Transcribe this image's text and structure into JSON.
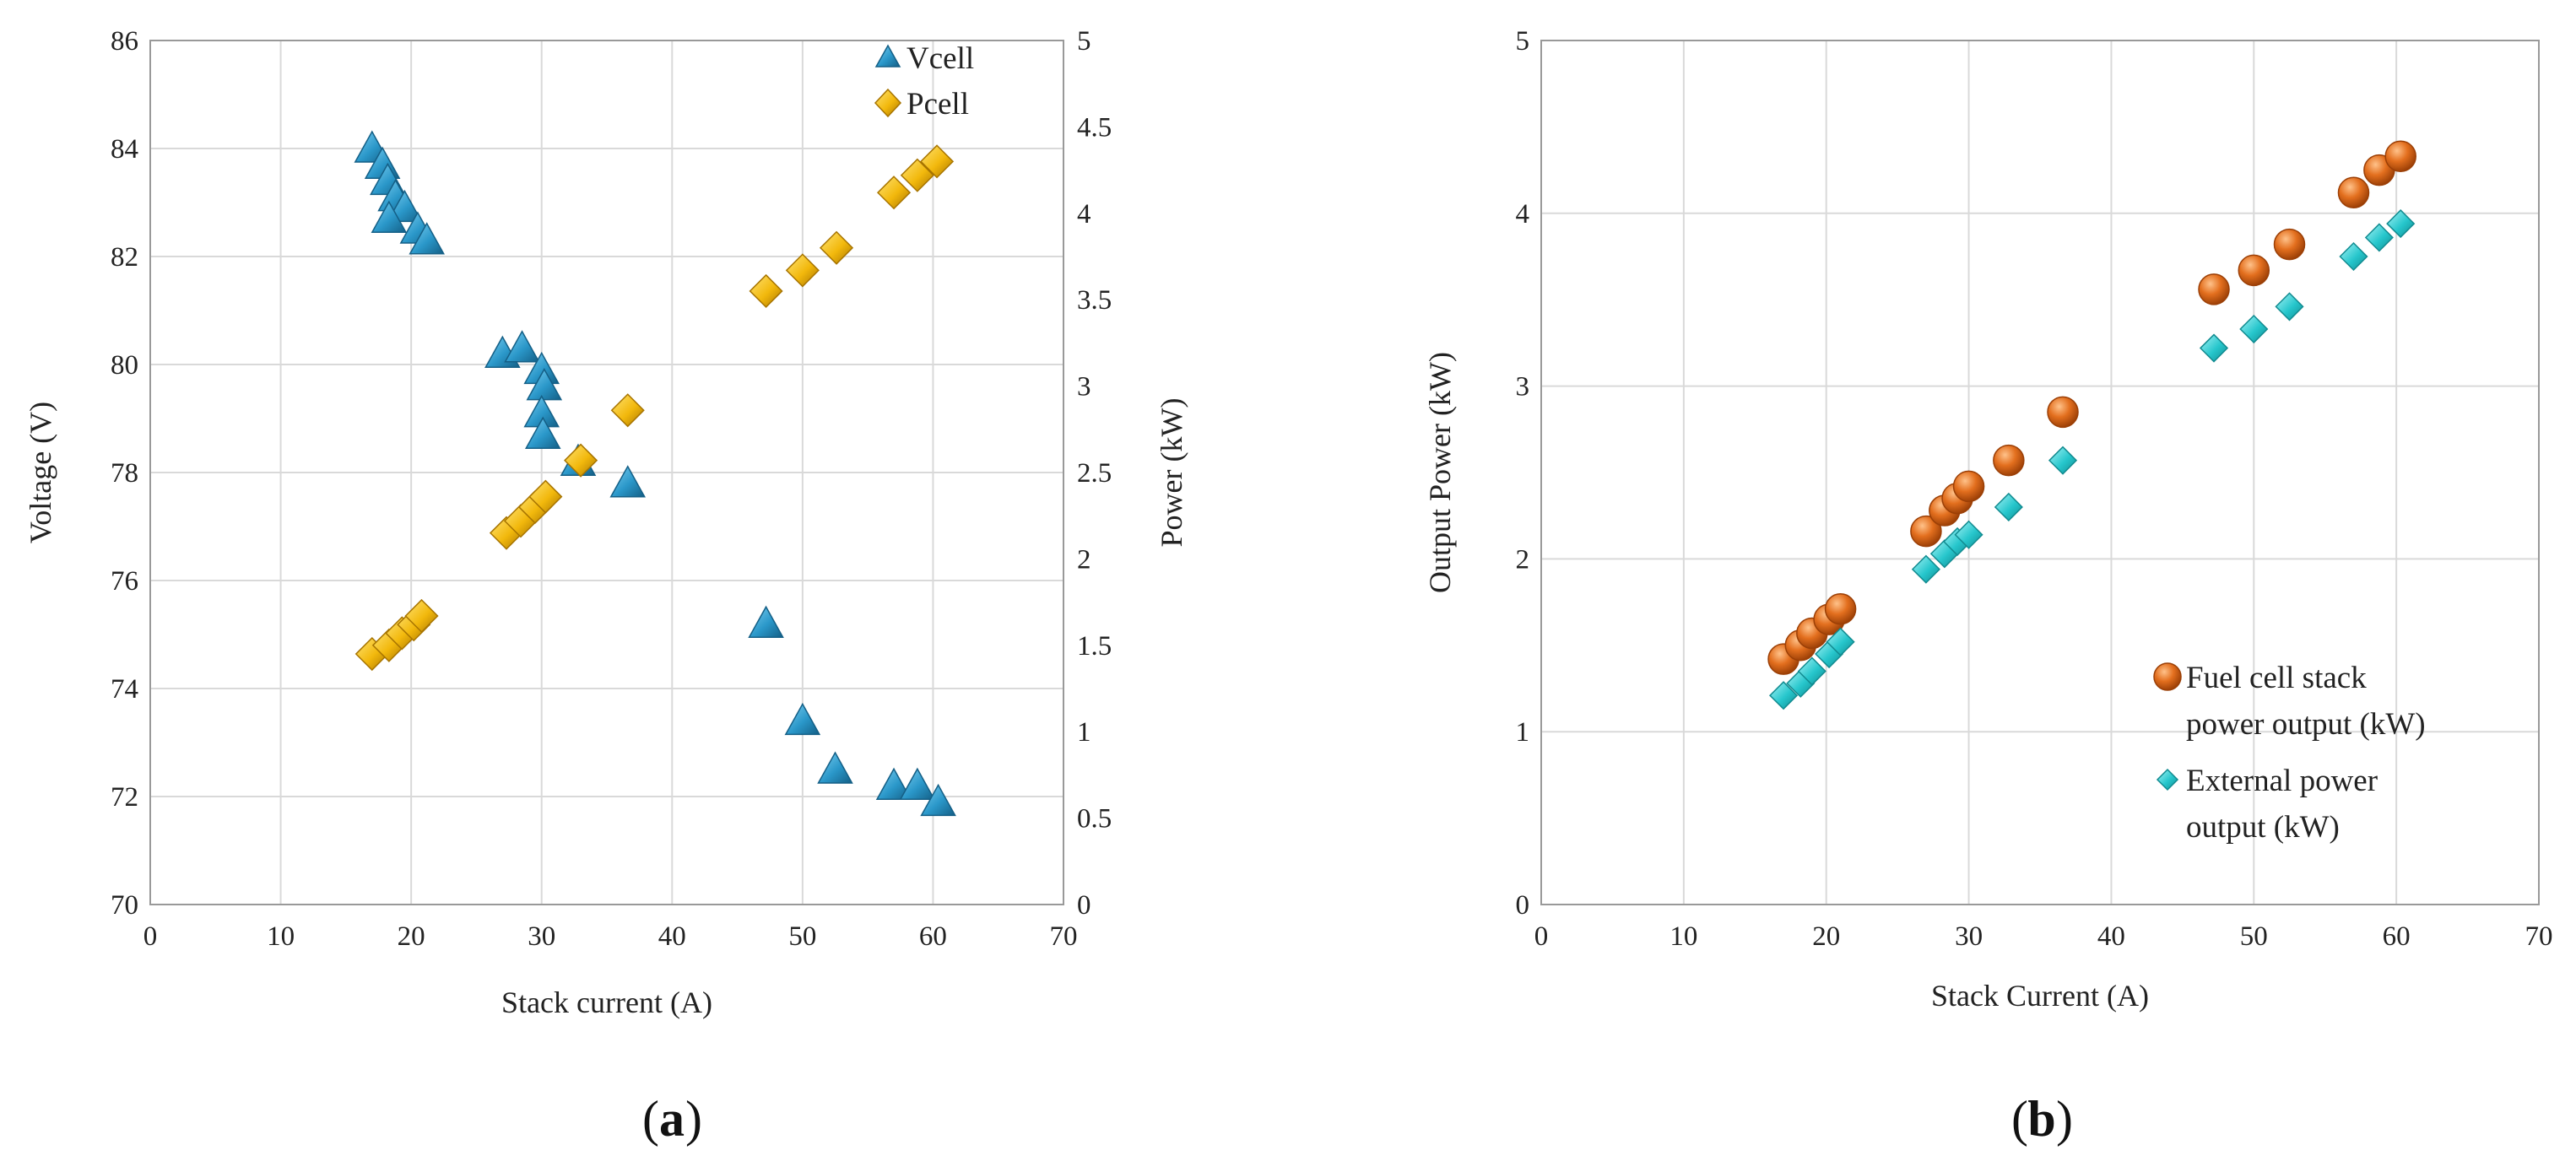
{
  "chart_data": [
    {
      "type": "scatter",
      "panel": "(a)",
      "panel_letter": "a",
      "xlabel": "Stack current (A)",
      "ylabel": "Voltage (V)",
      "ylabel_right": "Power (kW)",
      "xlim": [
        0,
        70
      ],
      "ylim": [
        70,
        86
      ],
      "ylim_right": [
        0,
        5
      ],
      "x_ticks": [
        "0",
        "10",
        "20",
        "30",
        "40",
        "50",
        "60",
        "70"
      ],
      "y_ticks": [
        "70",
        "72",
        "74",
        "76",
        "78",
        "80",
        "82",
        "84",
        "86"
      ],
      "y_ticks_right": [
        "0",
        "0.5",
        "1",
        "1.5",
        "2",
        "2.5",
        "3",
        "3.5",
        "4",
        "4.5",
        "5"
      ],
      "grid": true,
      "legend_position": "top-right",
      "series": [
        {
          "name": "Vcell",
          "axis": "left",
          "marker": "triangle",
          "color": "#2a97c9",
          "points": [
            [
              17,
              84.0
            ],
            [
              17.8,
              83.7
            ],
            [
              18.2,
              83.4
            ],
            [
              18.8,
              83.1
            ],
            [
              19.5,
              82.9
            ],
            [
              18.3,
              82.7
            ],
            [
              20.5,
              82.5
            ],
            [
              21.2,
              82.3
            ],
            [
              27,
              80.2
            ],
            [
              28.5,
              80.3
            ],
            [
              30,
              79.9
            ],
            [
              30.2,
              79.6
            ],
            [
              30,
              79.1
            ],
            [
              30.1,
              78.7
            ],
            [
              32.8,
              78.2
            ],
            [
              36.6,
              77.8
            ],
            [
              47.2,
              75.2
            ],
            [
              50,
              73.4
            ],
            [
              52.5,
              72.5
            ],
            [
              57,
              72.2
            ],
            [
              58.8,
              72.2
            ],
            [
              60.4,
              71.9
            ]
          ]
        },
        {
          "name": "Pcell",
          "axis": "right",
          "marker": "diamond",
          "color": "#f2b80c",
          "points": [
            [
              17,
              1.45
            ],
            [
              18.3,
              1.5
            ],
            [
              19.3,
              1.57
            ],
            [
              20.2,
              1.62
            ],
            [
              20.8,
              1.67
            ],
            [
              27.3,
              2.15
            ],
            [
              28.4,
              2.22
            ],
            [
              29.5,
              2.3
            ],
            [
              30.3,
              2.36
            ],
            [
              33,
              2.57
            ],
            [
              36.6,
              2.86
            ],
            [
              47.2,
              3.55
            ],
            [
              50,
              3.67
            ],
            [
              52.6,
              3.8
            ],
            [
              57,
              4.12
            ],
            [
              58.8,
              4.22
            ],
            [
              60.3,
              4.3
            ]
          ]
        }
      ]
    },
    {
      "type": "scatter",
      "panel": "(b)",
      "panel_letter": "b",
      "xlabel": "Stack Current (A)",
      "ylabel": "Output Power (kW)",
      "xlim": [
        0,
        70
      ],
      "ylim": [
        0,
        5
      ],
      "x_ticks": [
        "0",
        "10",
        "20",
        "30",
        "40",
        "50",
        "60",
        "70"
      ],
      "y_ticks": [
        "0",
        "1",
        "2",
        "3",
        "4",
        "5"
      ],
      "grid": true,
      "legend_position": "bottom-right",
      "series": [
        {
          "name_lines": [
            "Fuel cell stack",
            "power output (kW)"
          ],
          "marker": "circle",
          "color": "#e36f1e",
          "points": [
            [
              17,
              1.42
            ],
            [
              18.2,
              1.5
            ],
            [
              19,
              1.57
            ],
            [
              20.2,
              1.65
            ],
            [
              21,
              1.71
            ],
            [
              27,
              2.16
            ],
            [
              28.3,
              2.28
            ],
            [
              29.2,
              2.35
            ],
            [
              30,
              2.42
            ],
            [
              32.8,
              2.57
            ],
            [
              36.6,
              2.85
            ],
            [
              47.2,
              3.56
            ],
            [
              50,
              3.67
            ],
            [
              52.5,
              3.82
            ],
            [
              57,
              4.12
            ],
            [
              58.8,
              4.25
            ],
            [
              60.3,
              4.33
            ]
          ]
        },
        {
          "name_lines": [
            "External power",
            "output (kW)"
          ],
          "marker": "diamond",
          "color": "#26c6cc",
          "points": [
            [
              17,
              1.21
            ],
            [
              18.2,
              1.28
            ],
            [
              19,
              1.35
            ],
            [
              20.2,
              1.45
            ],
            [
              21,
              1.52
            ],
            [
              27,
              1.94
            ],
            [
              28.3,
              2.03
            ],
            [
              29.2,
              2.1
            ],
            [
              30,
              2.14
            ],
            [
              32.8,
              2.3
            ],
            [
              36.6,
              2.57
            ],
            [
              47.2,
              3.22
            ],
            [
              50,
              3.33
            ],
            [
              52.5,
              3.46
            ],
            [
              57,
              3.75
            ],
            [
              58.8,
              3.86
            ],
            [
              60.3,
              3.94
            ]
          ]
        }
      ]
    }
  ]
}
